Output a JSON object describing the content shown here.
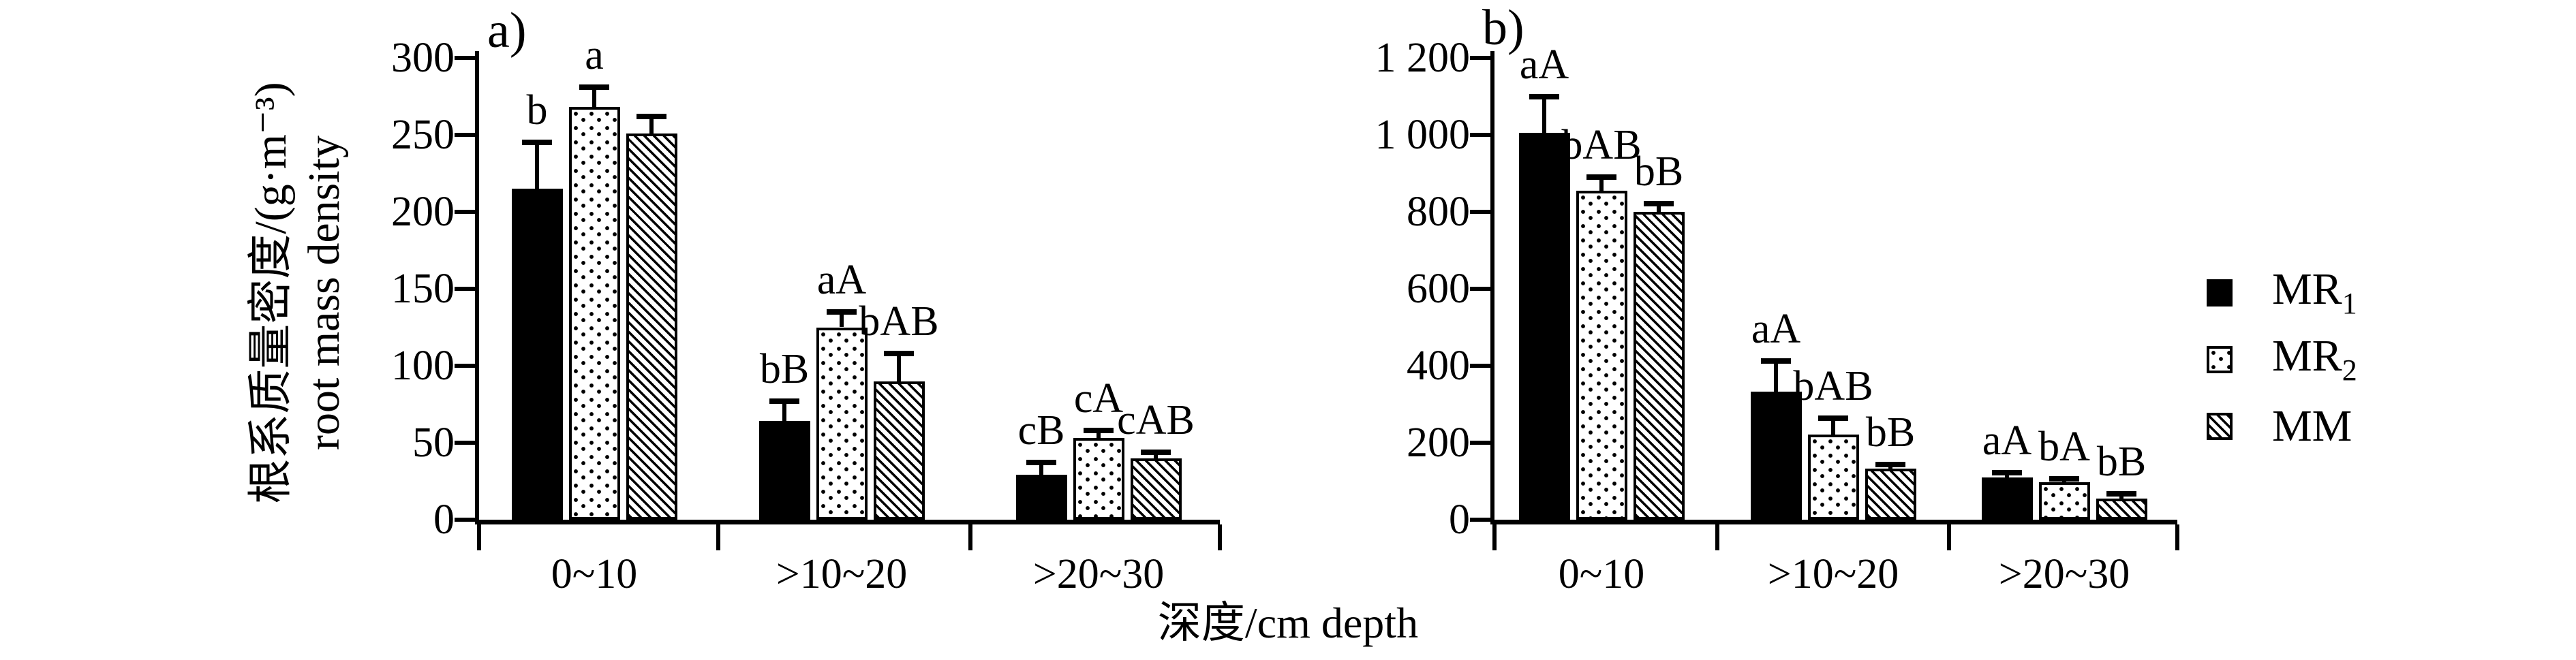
{
  "figure": {
    "axis": {
      "y_label_zh": "根系质量密度/(g·m⁻³)",
      "y_label_en": "root mass density",
      "x_label": "深度/cm depth"
    },
    "colors": {
      "foreground": "#000000",
      "background": "#ffffff"
    }
  },
  "legend": {
    "position": "right",
    "items": [
      {
        "label": "MR",
        "sub": "1",
        "pattern": "solid"
      },
      {
        "label": "MR",
        "sub": "2",
        "pattern": "dots"
      },
      {
        "label": "MM",
        "sub": "",
        "pattern": "hatch"
      }
    ]
  },
  "chart_data": [
    {
      "panel": "a",
      "title": "a)",
      "type": "bar",
      "grid": false,
      "categories": [
        "0~10",
        ">10~20",
        ">20~30"
      ],
      "ylim": [
        0,
        300
      ],
      "ytick_step": 50,
      "ytick_labels": [
        "0",
        "50",
        "100",
        "150",
        "200",
        "250",
        "300"
      ],
      "series": [
        {
          "name": "MR1",
          "pattern": "solid",
          "values": [
            215,
            64,
            29
          ],
          "errors": [
            30,
            13,
            8
          ],
          "letters": [
            "b",
            "bB",
            "cB"
          ]
        },
        {
          "name": "MR2",
          "pattern": "dots",
          "values": [
            268,
            125,
            53
          ],
          "errors": [
            13,
            10,
            5
          ],
          "letters": [
            "a",
            "aA",
            "cA"
          ]
        },
        {
          "name": "MM",
          "pattern": "hatch",
          "values": [
            251,
            90,
            40
          ],
          "errors": [
            11,
            18,
            4
          ],
          "letters": [
            "",
            "bAB",
            "cAB"
          ]
        }
      ]
    },
    {
      "panel": "b",
      "title": "b)",
      "type": "bar",
      "grid": false,
      "categories": [
        "0~10",
        ">10~20",
        ">20~30"
      ],
      "ylim": [
        0,
        1200
      ],
      "ytick_step": 200,
      "ytick_labels": [
        "0",
        "200",
        "400",
        "600",
        "800",
        "1 000",
        "1 200"
      ],
      "series": [
        {
          "name": "MR1",
          "pattern": "solid",
          "values": [
            1005,
            333,
            110
          ],
          "errors": [
            95,
            80,
            12
          ],
          "letters": [
            "aA",
            "aA",
            "aA"
          ]
        },
        {
          "name": "MR2",
          "pattern": "dots",
          "values": [
            855,
            222,
            97
          ],
          "errors": [
            35,
            42,
            10
          ],
          "letters": [
            "bAB",
            "bAB",
            "bA"
          ]
        },
        {
          "name": "MM",
          "pattern": "hatch",
          "values": [
            800,
            133,
            55
          ],
          "errors": [
            22,
            10,
            12
          ],
          "letters": [
            "bB",
            "bB",
            "bB"
          ]
        }
      ]
    }
  ]
}
